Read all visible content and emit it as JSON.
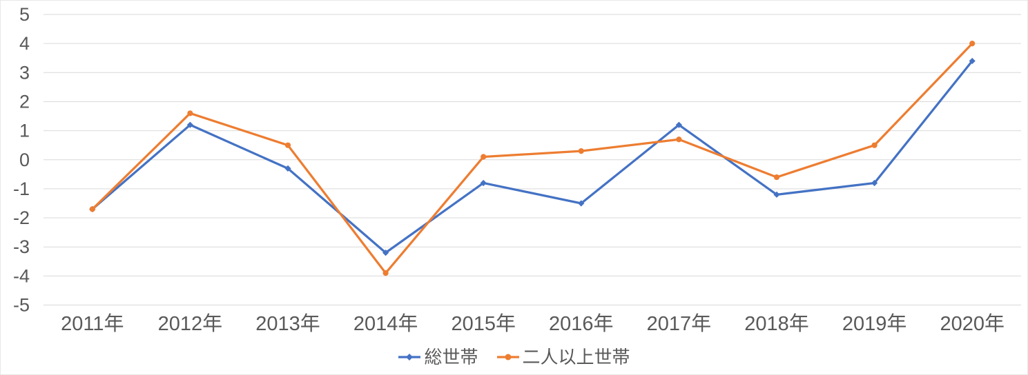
{
  "chart_data": {
    "type": "line",
    "categories": [
      "2011年",
      "2012年",
      "2013年",
      "2014年",
      "2015年",
      "2016年",
      "2017年",
      "2018年",
      "2019年",
      "2020年"
    ],
    "series": [
      {
        "name": "総世帯",
        "color": "#4472C4",
        "marker": "diamond",
        "values": [
          -1.7,
          1.2,
          -0.3,
          -3.2,
          -0.8,
          -1.5,
          1.2,
          -1.2,
          -0.8,
          3.4
        ]
      },
      {
        "name": "二人以上世帯",
        "color": "#ED7D31",
        "marker": "circle",
        "values": [
          -1.7,
          1.6,
          0.5,
          -3.9,
          0.1,
          0.3,
          0.7,
          -0.6,
          0.5,
          4.0
        ]
      }
    ],
    "title": "",
    "xlabel": "",
    "ylabel": "",
    "ylim": [
      -5,
      5
    ],
    "yticks": [
      5,
      4,
      3,
      2,
      1,
      0,
      -1,
      -2,
      -3,
      -4,
      -5
    ],
    "grid": true,
    "legend_position": "bottom",
    "colors": {
      "gridline": "#D9D9D9",
      "axis_text": "#595959",
      "background": "#FFFFFF"
    }
  }
}
